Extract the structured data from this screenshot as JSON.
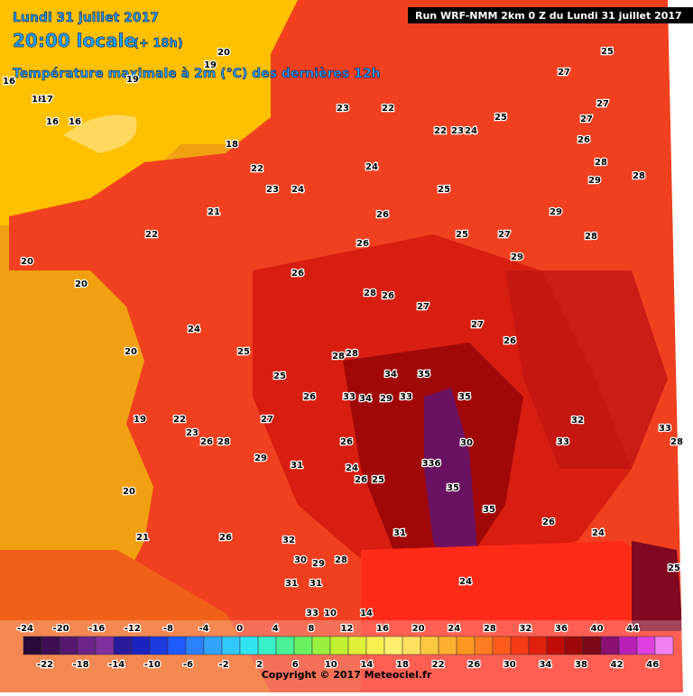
{
  "header": {
    "date": "Lundi 31 juillet 2017",
    "time": "20:00 locale",
    "offset": "(+ 18h)",
    "subtitle": "Température maximale à 2m (°C) des dernières 12h",
    "run": "Run WRF-NMM 2km 0 Z du Lundi 31 juillet 2017"
  },
  "footer": {
    "copyright": "Copyright © 2017 Meteociel.fr"
  },
  "colorbar": {
    "top_labels": [
      "-24",
      "-20",
      "-16",
      "-12",
      "-8",
      "-4",
      "0",
      "4",
      "8",
      "12",
      "16",
      "20",
      "24",
      "28",
      "32",
      "36",
      "40",
      "44"
    ],
    "bottom_labels": [
      "-22",
      "-18",
      "-14",
      "-10",
      "-6",
      "-2",
      "2",
      "6",
      "10",
      "14",
      "18",
      "22",
      "26",
      "30",
      "34",
      "38",
      "42",
      "46"
    ],
    "colors": [
      "#2a0a3a",
      "#3d0f52",
      "#55186e",
      "#6c2488",
      "#80309e",
      "#2a1a9c",
      "#1a22c0",
      "#1c3ae0",
      "#1e5aff",
      "#2a80ff",
      "#30a4ff",
      "#30c8ff",
      "#30e4f0",
      "#38f0c8",
      "#48f098",
      "#68f060",
      "#98f040",
      "#c0f030",
      "#e0f038",
      "#f8f050",
      "#fff070",
      "#ffe060",
      "#ffc840",
      "#ffb030",
      "#ff9820",
      "#ff7c20",
      "#ff5c1c",
      "#f53a14",
      "#e0200c",
      "#c00c08",
      "#9c0808",
      "#7c0818",
      "#8c1070",
      "#b820b8",
      "#e040e0",
      "#f080f0"
    ]
  },
  "map_labels": [
    "19",
    "20",
    "19",
    "16",
    "18",
    "17",
    "16",
    "16",
    "23",
    "22",
    "22",
    "23",
    "24",
    "25",
    "27",
    "25",
    "27",
    "26",
    "27",
    "28",
    "29",
    "28",
    "18",
    "22",
    "23",
    "24",
    "24",
    "25",
    "21",
    "22",
    "26",
    "26",
    "25",
    "27",
    "29",
    "28",
    "20",
    "20",
    "26",
    "29",
    "28",
    "26",
    "27",
    "27",
    "24",
    "20",
    "25",
    "26",
    "28",
    "28",
    "25",
    "34",
    "35",
    "26",
    "33",
    "34",
    "29",
    "33",
    "35",
    "19",
    "22",
    "27",
    "23",
    "26",
    "28",
    "26",
    "30",
    "32",
    "33",
    "29",
    "31",
    "33",
    "28",
    "24",
    "26",
    "25",
    "336",
    "20",
    "35",
    "35",
    "26",
    "24",
    "21",
    "26",
    "32",
    "31",
    "30",
    "29",
    "28",
    "25",
    "24",
    "31",
    "31",
    "33",
    "10",
    "14"
  ]
}
